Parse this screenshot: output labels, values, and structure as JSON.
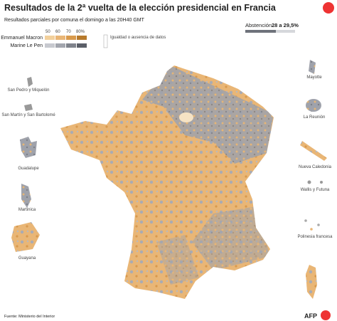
{
  "header": {
    "title": "Resultados de la 2ª vuelta de la elección presidencial en Francia",
    "subtitle": "Resultados parciales por comuna el domingo a las 20H40 GMT"
  },
  "legend": {
    "scale": [
      "50",
      "60",
      "70",
      "80%"
    ],
    "candidates": [
      "Emmanuel Macron",
      "Marine Le Pen"
    ],
    "no_data": "Igualdad o ausencia de datos",
    "abstention_label": "Abstención",
    "abstention_value": "28 a 29,5%"
  },
  "territories": [
    "San Pedro y Miquelón",
    "San Martín y San Bartolomé",
    "Guadalupe",
    "Martinica",
    "Guayana",
    "Mayotte",
    "La Reunión",
    "Nueva Caledonia",
    "Wallis y Futuna",
    "Polinesia francesa"
  ],
  "footer": {
    "source": "Fuente: Ministerio del Interior",
    "logo": "AFP"
  }
}
